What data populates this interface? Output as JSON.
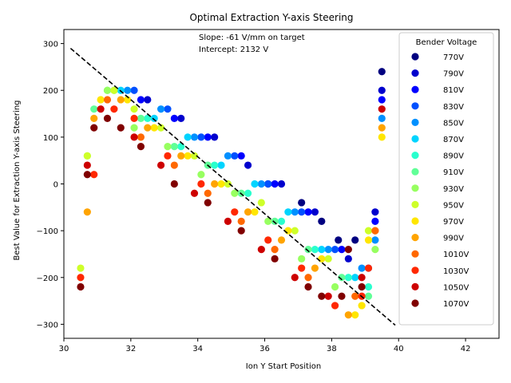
{
  "chart_data": {
    "type": "scatter",
    "title": "Optimal Extraction Y-axis Steering",
    "xlabel": "Ion Y Start Position",
    "ylabel": "Best Value for Extraction Y-axis Steering",
    "xlim": [
      30,
      43
    ],
    "ylim": [
      -330,
      330
    ],
    "xticks": [
      30,
      32,
      34,
      36,
      38,
      40,
      42
    ],
    "yticks": [
      -300,
      -200,
      -100,
      0,
      100,
      200,
      300
    ],
    "grid": false,
    "annotations": [
      "Slope: -61 V/mm on target",
      "Intercept: 2132 V"
    ],
    "fit_line": {
      "style": "dashed",
      "color": "#000000",
      "slope": -61,
      "intercept": 2132
    },
    "legend": {
      "title": "Bender Voltage",
      "placement": "top-right",
      "entries": [
        "770V",
        "790V",
        "810V",
        "830V",
        "850V",
        "870V",
        "890V",
        "910V",
        "930V",
        "950V",
        "970V",
        "990V",
        "1010V",
        "1030V",
        "1050V",
        "1070V"
      ]
    },
    "series": [
      {
        "name": "770V",
        "color": "#000080",
        "x": [
          36.1,
          37.1,
          37.7,
          38.2,
          38.7,
          39.5
        ],
        "y": [
          0,
          -40,
          -80,
          -120,
          -120,
          240
        ]
      },
      {
        "name": "790V",
        "color": "#0000cd",
        "x": [
          32.5,
          33.5,
          34.5,
          35.5,
          36.5,
          37.5,
          38.5,
          39.3,
          39.5
        ],
        "y": [
          180,
          140,
          100,
          40,
          0,
          -60,
          -160,
          -60,
          200
        ]
      },
      {
        "name": "810V",
        "color": "#0000ff",
        "x": [
          32.3,
          33.3,
          34.3,
          35.3,
          36.3,
          37.3,
          38.3,
          39.3,
          39.5
        ],
        "y": [
          180,
          140,
          100,
          60,
          0,
          -60,
          -140,
          -80,
          180
        ]
      },
      {
        "name": "830V",
        "color": "#0050ff",
        "x": [
          32.1,
          33.1,
          34.1,
          35.1,
          36.1,
          37.1,
          38.1,
          39.1
        ],
        "y": [
          200,
          160,
          100,
          60,
          0,
          -60,
          -140,
          -180
        ]
      },
      {
        "name": "850V",
        "color": "#0090ff",
        "x": [
          31.9,
          32.9,
          33.9,
          34.9,
          35.9,
          36.9,
          37.9,
          38.9,
          39.3,
          39.5
        ],
        "y": [
          200,
          160,
          100,
          60,
          0,
          -60,
          -140,
          -180,
          -120,
          140
        ]
      },
      {
        "name": "870V",
        "color": "#00d4ff",
        "x": [
          31.7,
          32.7,
          33.7,
          34.7,
          35.7,
          36.7,
          37.7,
          38.7
        ],
        "y": [
          200,
          140,
          100,
          40,
          0,
          -60,
          -140,
          -200
        ]
      },
      {
        "name": "890V",
        "color": "#29ffce",
        "x": [
          31.5,
          32.5,
          33.5,
          34.5,
          35.5,
          36.5,
          37.5,
          38.5,
          39.1
        ],
        "y": [
          200,
          140,
          80,
          40,
          -20,
          -80,
          -140,
          -200,
          -220
        ]
      },
      {
        "name": "910V",
        "color": "#60ff97",
        "x": [
          30.9,
          31.3,
          32.3,
          33.3,
          34.3,
          35.3,
          36.3,
          37.3,
          38.3,
          39.1
        ],
        "y": [
          160,
          200,
          140,
          80,
          40,
          -20,
          -80,
          -140,
          -200,
          -240
        ]
      },
      {
        "name": "930V",
        "color": "#97ff60",
        "x": [
          30.7,
          31.3,
          32.1,
          33.1,
          34.1,
          35.1,
          36.1,
          37.1,
          38.1,
          39.3
        ],
        "y": [
          60,
          200,
          120,
          80,
          20,
          -20,
          -80,
          -160,
          -220,
          -140
        ]
      },
      {
        "name": "950V",
        "color": "#ceff29",
        "x": [
          30.5,
          30.7,
          31.5,
          32.1,
          32.9,
          33.9,
          34.9,
          35.9,
          36.9,
          37.9,
          39.1
        ],
        "y": [
          -180,
          60,
          200,
          160,
          120,
          60,
          0,
          -40,
          -100,
          -160,
          -100
        ]
      },
      {
        "name": "970V",
        "color": "#ffe600",
        "x": [
          31.1,
          31.9,
          32.7,
          33.7,
          34.7,
          35.7,
          36.7,
          37.7,
          38.7,
          38.9,
          39.1,
          39.5
        ],
        "y": [
          180,
          180,
          120,
          60,
          0,
          -60,
          -100,
          -160,
          -280,
          -260,
          -120,
          100
        ]
      },
      {
        "name": "990V",
        "color": "#ffa400",
        "x": [
          30.7,
          30.9,
          31.7,
          32.5,
          33.5,
          34.5,
          35.5,
          36.5,
          37.5,
          38.5,
          39.3,
          39.5
        ],
        "y": [
          -60,
          140,
          180,
          120,
          60,
          0,
          -60,
          -120,
          -180,
          -280,
          -100,
          120
        ]
      },
      {
        "name": "1010V",
        "color": "#ff6800",
        "x": [
          31.3,
          32.3,
          33.3,
          34.3,
          35.3,
          36.3,
          37.3,
          38.7,
          39.3
        ],
        "y": [
          180,
          100,
          40,
          -20,
          -80,
          -140,
          -200,
          -240,
          -100
        ]
      },
      {
        "name": "1030V",
        "color": "#ff2800",
        "x": [
          30.5,
          30.9,
          31.5,
          32.1,
          33.1,
          34.1,
          35.1,
          36.1,
          37.1,
          38.1,
          38.9,
          39.1
        ],
        "y": [
          -200,
          20,
          160,
          140,
          60,
          0,
          -60,
          -120,
          -180,
          -260,
          -240,
          -180
        ]
      },
      {
        "name": "1050V",
        "color": "#cd0000",
        "x": [
          30.7,
          31.1,
          32.1,
          32.9,
          33.9,
          34.9,
          35.9,
          36.9,
          37.9,
          38.9,
          39.5
        ],
        "y": [
          40,
          160,
          100,
          40,
          -20,
          -80,
          -140,
          -200,
          -240,
          -200,
          160
        ]
      },
      {
        "name": "1070V",
        "color": "#800000",
        "x": [
          30.5,
          30.7,
          30.9,
          31.3,
          31.7,
          32.3,
          33.3,
          34.3,
          35.3,
          36.3,
          37.3,
          37.7,
          38.3,
          38.5,
          38.9
        ],
        "y": [
          -220,
          20,
          120,
          140,
          120,
          80,
          0,
          -40,
          -100,
          -160,
          -220,
          -240,
          -240,
          -140,
          -220
        ]
      }
    ]
  }
}
